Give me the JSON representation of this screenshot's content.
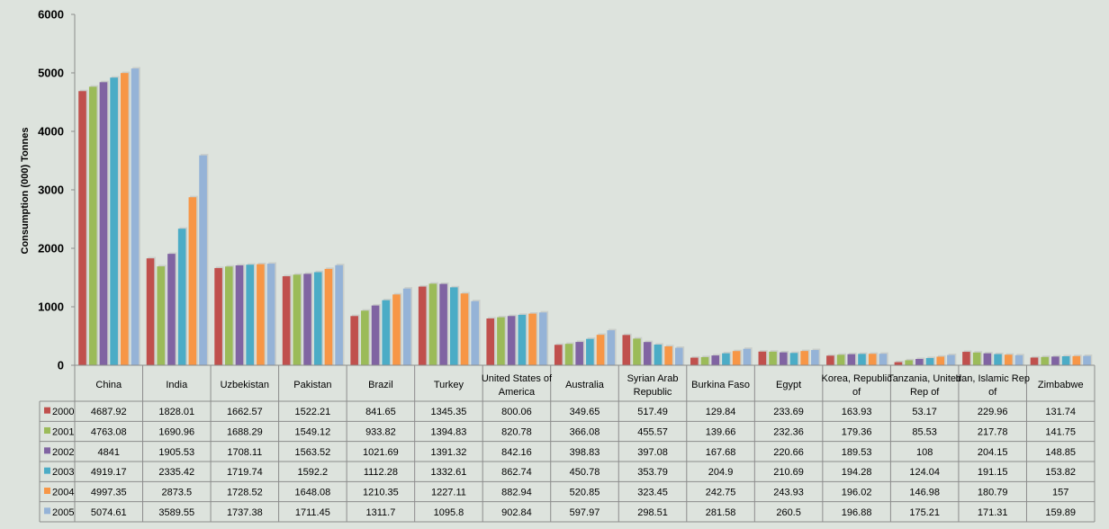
{
  "chart_data": {
    "type": "bar",
    "ylabel": "Consumption (000) Tonnes",
    "ylim": [
      0,
      6000
    ],
    "yticks": [
      0,
      1000,
      2000,
      3000,
      4000,
      5000,
      6000
    ],
    "grid": false,
    "legend": "data-table-left",
    "categories": [
      [
        "China"
      ],
      [
        "India"
      ],
      [
        "Uzbekistan"
      ],
      [
        "Pakistan"
      ],
      [
        "Brazil"
      ],
      [
        "Turkey"
      ],
      [
        "United States of",
        "America"
      ],
      [
        "Australia"
      ],
      [
        "Syrian Arab",
        "Republic"
      ],
      [
        "Burkina Faso"
      ],
      [
        "Egypt"
      ],
      [
        "Korea, Republic",
        "of"
      ],
      [
        "Tanzania, United",
        "Rep of"
      ],
      [
        "Iran, Islamic Rep",
        "of"
      ],
      [
        "Zimbabwe"
      ]
    ],
    "series": [
      {
        "name": "2000",
        "color": "#c0504d",
        "values": [
          4687.92,
          1828.01,
          1662.57,
          1522.21,
          841.65,
          1345.35,
          800.06,
          349.65,
          517.49,
          129.84,
          233.69,
          163.93,
          53.17,
          229.96,
          131.74
        ]
      },
      {
        "name": "2001",
        "color": "#9bbb59",
        "values": [
          4763.08,
          1690.96,
          1688.29,
          1549.12,
          933.82,
          1394.83,
          820.78,
          366.08,
          455.57,
          139.66,
          232.36,
          179.36,
          85.53,
          217.78,
          141.75
        ]
      },
      {
        "name": "2002",
        "color": "#8064a2",
        "values": [
          4841,
          1905.53,
          1708.11,
          1563.52,
          1021.69,
          1391.32,
          842.16,
          398.83,
          397.08,
          167.68,
          220.66,
          189.53,
          108,
          204.15,
          148.85
        ]
      },
      {
        "name": "2003",
        "color": "#4bacc6",
        "values": [
          4919.17,
          2335.42,
          1719.74,
          1592.2,
          1112.28,
          1332.61,
          862.74,
          450.78,
          353.79,
          204.9,
          210.69,
          194.28,
          124.04,
          191.15,
          153.82
        ]
      },
      {
        "name": "2004",
        "color": "#f79646",
        "values": [
          4997.35,
          2873.5,
          1728.52,
          1648.08,
          1210.35,
          1227.11,
          882.94,
          520.85,
          323.45,
          242.75,
          243.93,
          196.02,
          146.98,
          180.79,
          157
        ]
      },
      {
        "name": "2005",
        "color": "#95b3d7",
        "values": [
          5074.61,
          3589.55,
          1737.38,
          1711.45,
          1311.7,
          1095.8,
          902.84,
          597.97,
          298.51,
          281.58,
          260.5,
          196.88,
          175.21,
          171.31,
          159.89
        ]
      }
    ]
  }
}
